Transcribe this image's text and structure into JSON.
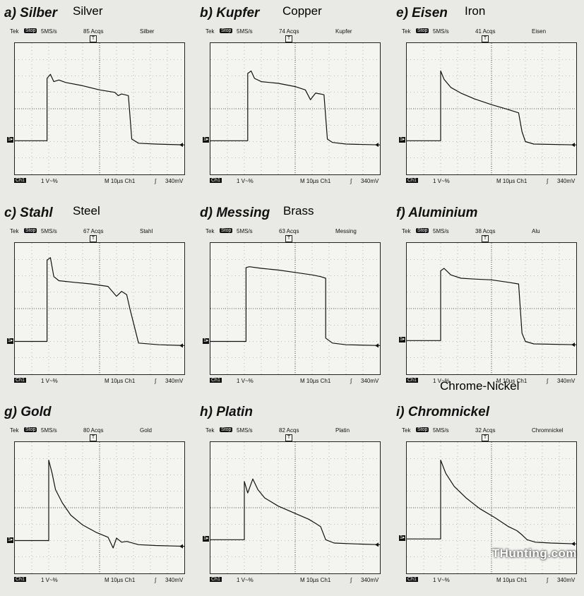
{
  "watermark": "THunting.com",
  "chart_data": [
    {
      "type": "line",
      "panel_title": "a) Silber",
      "english_label": "Silver",
      "tek": "Tek",
      "stop": "Stop",
      "rate": "5MS/s",
      "acqs": "85 Acqs",
      "channel_label": "Silber",
      "footer": {
        "ch": "Ch1",
        "volts": "1 V~%",
        "time": "M  10µs  Ch1",
        "slope": "∫",
        "trigger": "340mV"
      },
      "ylim": [
        0,
        8
      ],
      "xlim": [
        0,
        10
      ],
      "x": [
        0,
        1.9,
        1.9,
        2.1,
        2.3,
        2.6,
        3.0,
        4.0,
        5.0,
        5.9,
        6.1,
        6.3,
        6.5,
        6.7,
        6.9,
        7.3,
        8.3,
        10
      ],
      "y": [
        2.05,
        2.05,
        5.85,
        6.1,
        5.65,
        5.75,
        5.6,
        5.4,
        5.15,
        5.0,
        4.8,
        4.9,
        4.85,
        4.8,
        2.15,
        1.9,
        1.85,
        1.8
      ]
    },
    {
      "type": "line",
      "panel_title": "b) Kupfer",
      "english_label": "Copper",
      "tek": "Tek",
      "stop": "Stop",
      "rate": "5MS/s",
      "acqs": "74 Acqs",
      "channel_label": "Kupfer",
      "footer": {
        "ch": "Ch1",
        "volts": "1 V~%",
        "time": "M  10µs  Ch1",
        "slope": "∫",
        "trigger": "340mV"
      },
      "ylim": [
        0,
        8
      ],
      "xlim": [
        0,
        10
      ],
      "x": [
        0,
        2.2,
        2.2,
        2.4,
        2.6,
        3.0,
        4.0,
        5.0,
        5.6,
        5.9,
        6.2,
        6.5,
        6.7,
        6.9,
        7.2,
        8.0,
        10
      ],
      "y": [
        2.05,
        2.05,
        6.15,
        6.3,
        5.85,
        5.65,
        5.55,
        5.35,
        5.15,
        4.55,
        4.95,
        4.9,
        4.85,
        2.15,
        1.95,
        1.85,
        1.8
      ]
    },
    {
      "type": "line",
      "panel_title": "e) Eisen",
      "english_label": "Iron",
      "tek": "Tek",
      "stop": "Stop",
      "rate": "5MS/s",
      "acqs": "41 Acqs",
      "channel_label": "Eisen",
      "footer": {
        "ch": "Ch1",
        "volts": "1 V~%",
        "time": "M  10µs  Ch1",
        "slope": "∫",
        "trigger": "340mV"
      },
      "ylim": [
        0,
        8
      ],
      "xlim": [
        0,
        10
      ],
      "x": [
        0,
        2.0,
        2.0,
        2.2,
        2.6,
        3.2,
        4.0,
        5.0,
        6.0,
        6.6,
        6.8,
        7.0,
        7.5,
        10
      ],
      "y": [
        2.05,
        2.05,
        6.3,
        5.8,
        5.3,
        4.95,
        4.6,
        4.25,
        3.95,
        3.75,
        2.6,
        2.0,
        1.85,
        1.8
      ]
    },
    {
      "type": "line",
      "panel_title": "c) Stahl",
      "english_label": "Steel",
      "tek": "Tek",
      "stop": "Stop",
      "rate": "5MS/s",
      "acqs": "67 Acqs",
      "channel_label": "Stahl",
      "footer": {
        "ch": "Ch1",
        "volts": "1 V~%",
        "time": "M  10µs  Ch1",
        "slope": "∫",
        "trigger": "340mV"
      },
      "ylim": [
        0,
        8
      ],
      "xlim": [
        0,
        10
      ],
      "x": [
        0,
        1.9,
        1.9,
        2.1,
        2.3,
        2.6,
        3.5,
        4.5,
        5.5,
        6.0,
        6.3,
        6.6,
        6.8,
        7.3,
        8.5,
        10
      ],
      "y": [
        2.0,
        2.0,
        6.95,
        7.1,
        5.95,
        5.7,
        5.6,
        5.5,
        5.35,
        4.75,
        5.05,
        4.85,
        3.95,
        1.9,
        1.8,
        1.75
      ]
    },
    {
      "type": "line",
      "panel_title": "d) Messing",
      "english_label": "Brass",
      "tek": "Tek",
      "stop": "Stop",
      "rate": "5MS/s",
      "acqs": "63 Acqs",
      "channel_label": "Messing",
      "footer": {
        "ch": "Ch1",
        "volts": "1 V~%",
        "time": "M  10µs  Ch1",
        "slope": "∫",
        "trigger": "340mV"
      },
      "ylim": [
        0,
        8
      ],
      "xlim": [
        0,
        10
      ],
      "x": [
        0,
        2.1,
        2.1,
        2.3,
        3.0,
        4.0,
        5.0,
        6.0,
        6.5,
        6.8,
        6.8,
        7.2,
        8.0,
        10
      ],
      "y": [
        2.0,
        2.0,
        6.5,
        6.55,
        6.45,
        6.35,
        6.2,
        6.05,
        5.95,
        5.85,
        2.2,
        1.9,
        1.8,
        1.75
      ]
    },
    {
      "type": "line",
      "panel_title": "f) Aluminium",
      "english_label": "",
      "tek": "Tek",
      "stop": "Stop",
      "rate": "5MS/s",
      "acqs": "38 Acqs",
      "channel_label": "Alu",
      "footer": {
        "ch": "Ch1",
        "volts": "1 V~%",
        "time": "M  10µs  Ch1",
        "slope": "∫",
        "trigger": "340mV"
      },
      "ylim": [
        0,
        8
      ],
      "xlim": [
        0,
        10
      ],
      "x": [
        0,
        2.0,
        2.0,
        2.2,
        2.6,
        3.2,
        4.0,
        5.0,
        6.0,
        6.6,
        6.8,
        7.0,
        7.5,
        10
      ],
      "y": [
        2.05,
        2.05,
        6.3,
        6.45,
        6.05,
        5.85,
        5.8,
        5.75,
        5.6,
        5.5,
        2.5,
        2.0,
        1.85,
        1.8
      ]
    },
    {
      "type": "line",
      "panel_title": "g) Gold",
      "english_label": "",
      "tek": "Tek",
      "stop": "Stop",
      "rate": "5MS/s",
      "acqs": "80 Acqs",
      "channel_label": "Gold",
      "footer": {
        "ch": "Ch1",
        "volts": "1 V~%",
        "time": "M  10µs  Ch1",
        "slope": "∫",
        "trigger": "340mV"
      },
      "ylim": [
        0,
        8
      ],
      "xlim": [
        0,
        10
      ],
      "x": [
        0,
        2.0,
        2.0,
        2.2,
        2.4,
        2.8,
        3.3,
        4.0,
        4.8,
        5.5,
        5.8,
        6.0,
        6.3,
        6.6,
        7.3,
        8.3,
        10
      ],
      "y": [
        2.0,
        2.0,
        6.9,
        6.1,
        5.1,
        4.3,
        3.55,
        2.95,
        2.5,
        2.2,
        1.55,
        2.15,
        1.9,
        1.95,
        1.75,
        1.7,
        1.65
      ]
    },
    {
      "type": "line",
      "panel_title": "h) Platin",
      "english_label": "",
      "tek": "Tek",
      "stop": "Stop",
      "rate": "5MS/s",
      "acqs": "82 Acqs",
      "channel_label": "Platin",
      "footer": {
        "ch": "Ch1",
        "volts": "1 V~%",
        "time": "M  10µs  Ch1",
        "slope": "∫",
        "trigger": "340mV"
      },
      "ylim": [
        0,
        8
      ],
      "xlim": [
        0,
        10
      ],
      "x": [
        0,
        2.0,
        2.0,
        2.2,
        2.5,
        2.8,
        3.2,
        4.0,
        5.0,
        5.8,
        6.2,
        6.5,
        6.8,
        7.3,
        8.5,
        10
      ],
      "y": [
        2.05,
        2.05,
        5.6,
        4.9,
        5.75,
        5.1,
        4.6,
        4.1,
        3.65,
        3.3,
        3.05,
        2.85,
        2.05,
        1.85,
        1.8,
        1.75
      ]
    },
    {
      "type": "line",
      "panel_title": "i) Chromnickel",
      "english_label": "Chrome-Nickel",
      "tek": "Tek",
      "stop": "Stop",
      "rate": "5MS/s",
      "acqs": "32 Acqs",
      "channel_label": "Chromnickel",
      "footer": {
        "ch": "Ch1",
        "volts": "1 V~%",
        "time": "M  10µs  Ch1",
        "slope": "∫",
        "trigger": "340mV"
      },
      "ylim": [
        0,
        8
      ],
      "xlim": [
        0,
        10
      ],
      "x": [
        0,
        2.0,
        2.0,
        2.3,
        2.8,
        3.5,
        4.3,
        5.2,
        6.0,
        6.5,
        6.8,
        7.1,
        7.6,
        8.5,
        10
      ],
      "y": [
        2.1,
        2.1,
        6.9,
        6.1,
        5.3,
        4.6,
        3.95,
        3.4,
        2.85,
        2.6,
        2.35,
        2.05,
        1.9,
        1.85,
        1.8
      ]
    }
  ]
}
